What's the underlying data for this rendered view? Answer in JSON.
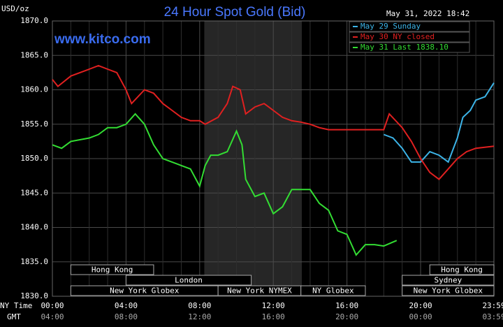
{
  "chart_data": {
    "type": "line",
    "title": "24 Hour Spot Gold (Bid)",
    "timestamp": "May 31, 2022 18:42",
    "watermark": "www.kitco.com",
    "ylabel": "USD/oz",
    "xlabel": "NY Time",
    "x2label": "GMT",
    "xlim": [
      0,
      23.983
    ],
    "ylim": [
      1830,
      1870
    ],
    "yticks": [
      {
        "value": 1830,
        "label": "1830.0"
      },
      {
        "value": 1835,
        "label": "1835.0"
      },
      {
        "value": 1840,
        "label": "1840.0"
      },
      {
        "value": 1845,
        "label": "1845.0"
      },
      {
        "value": 1850,
        "label": "1850.0"
      },
      {
        "value": 1855,
        "label": "1855.0"
      },
      {
        "value": 1860,
        "label": "1860.0"
      },
      {
        "value": 1865,
        "label": "1865.0"
      },
      {
        "value": 1870,
        "label": "1870.0"
      }
    ],
    "xticks": [
      {
        "value": 0,
        "label": "00:00"
      },
      {
        "value": 4,
        "label": "04:00"
      },
      {
        "value": 8,
        "label": "08:00"
      },
      {
        "value": 12,
        "label": "12:00"
      },
      {
        "value": 16,
        "label": "16:00"
      },
      {
        "value": 20,
        "label": "20:00"
      },
      {
        "value": 23.983,
        "label": "23:59"
      }
    ],
    "x2tick_labels": [
      "04:00",
      "08:00",
      "12:00",
      "16:00",
      "20:00",
      "00:00",
      "03:59"
    ],
    "grid": true,
    "shaded_range": [
      8.25,
      13.55
    ],
    "sessions": [
      {
        "label": "Hong Kong",
        "start": 1,
        "end": 5.5,
        "row": 0
      },
      {
        "label": "Hong Kong",
        "start": 20.5,
        "end": 23.983,
        "row": 0
      },
      {
        "label": "London",
        "start": 4,
        "end": 10.8,
        "row": 1
      },
      {
        "label": "Sydney",
        "start": 19,
        "end": 23.983,
        "row": 1
      },
      {
        "label": "New York Globex",
        "start": 1,
        "end": 9,
        "row": 2
      },
      {
        "label": "New York NYMEX",
        "start": 9,
        "end": 13.5,
        "row": 2
      },
      {
        "label": "NY Globex",
        "start": 13.5,
        "end": 17,
        "row": 2
      },
      {
        "label": "New York Globex",
        "start": 19,
        "end": 23.983,
        "row": 2
      }
    ],
    "series": [
      {
        "name": "May 29 Sunday",
        "color": "#3cb4e8",
        "x": [
          18,
          18.5,
          19,
          19.5,
          20,
          20.5,
          21,
          21.5,
          22,
          22.3,
          22.7,
          23,
          23.5,
          23.983
        ],
        "values": [
          1853.5,
          1853,
          1851.5,
          1849.5,
          1849.5,
          1851,
          1850.5,
          1849.5,
          1853,
          1856,
          1857,
          1858.5,
          1859,
          1861
        ]
      },
      {
        "name": "May 30 NY closed",
        "color": "#e02020",
        "x": [
          0,
          0.3,
          1,
          2,
          2.5,
          3,
          3.5,
          4,
          4.3,
          5,
          5.5,
          6,
          6.5,
          7,
          7.5,
          8,
          8.3,
          9,
          9.5,
          9.8,
          10.2,
          10.5,
          11,
          11.5,
          12,
          12.5,
          13,
          13.5,
          14,
          14.5,
          15,
          18,
          18.3,
          19,
          19.5,
          20,
          20.5,
          21,
          21.5,
          22,
          22.5,
          23,
          23.983
        ],
        "values": [
          1861.5,
          1860.5,
          1862,
          1863,
          1863.5,
          1863,
          1862.5,
          1860,
          1858,
          1860,
          1859.5,
          1858,
          1857,
          1856,
          1855.5,
          1855.5,
          1855,
          1856,
          1858,
          1860.5,
          1860,
          1856.5,
          1857.5,
          1858,
          1857,
          1856,
          1855.5,
          1855.3,
          1855,
          1854.5,
          1854.2,
          1854.2,
          1856.5,
          1854.5,
          1852.5,
          1850,
          1848,
          1847,
          1848.5,
          1850,
          1851,
          1851.5,
          1851.8
        ]
      },
      {
        "name": "May 31 Last 1838.10",
        "color": "#33dd33",
        "x": [
          0,
          0.5,
          1,
          2,
          2.5,
          3,
          3.5,
          4,
          4.5,
          5,
          5.5,
          6,
          6.5,
          7,
          7.5,
          8,
          8.3,
          8.6,
          9,
          9.5,
          10,
          10.3,
          10.5,
          11,
          11.5,
          12,
          12.5,
          13,
          13.5,
          14,
          14.5,
          15,
          15.5,
          16,
          16.5,
          17,
          17.5,
          18,
          18.7
        ],
        "values": [
          1852,
          1851.5,
          1852.5,
          1853,
          1853.5,
          1854.5,
          1854.5,
          1855,
          1856.5,
          1855,
          1852,
          1850,
          1849.5,
          1849,
          1848.5,
          1846,
          1849,
          1850.5,
          1850.5,
          1851,
          1854,
          1852,
          1847,
          1844.5,
          1845,
          1842,
          1843,
          1845.5,
          1845.5,
          1845.5,
          1843.5,
          1842.5,
          1839.5,
          1839,
          1836,
          1837.5,
          1837.5,
          1837.3,
          1838.1
        ]
      }
    ]
  }
}
